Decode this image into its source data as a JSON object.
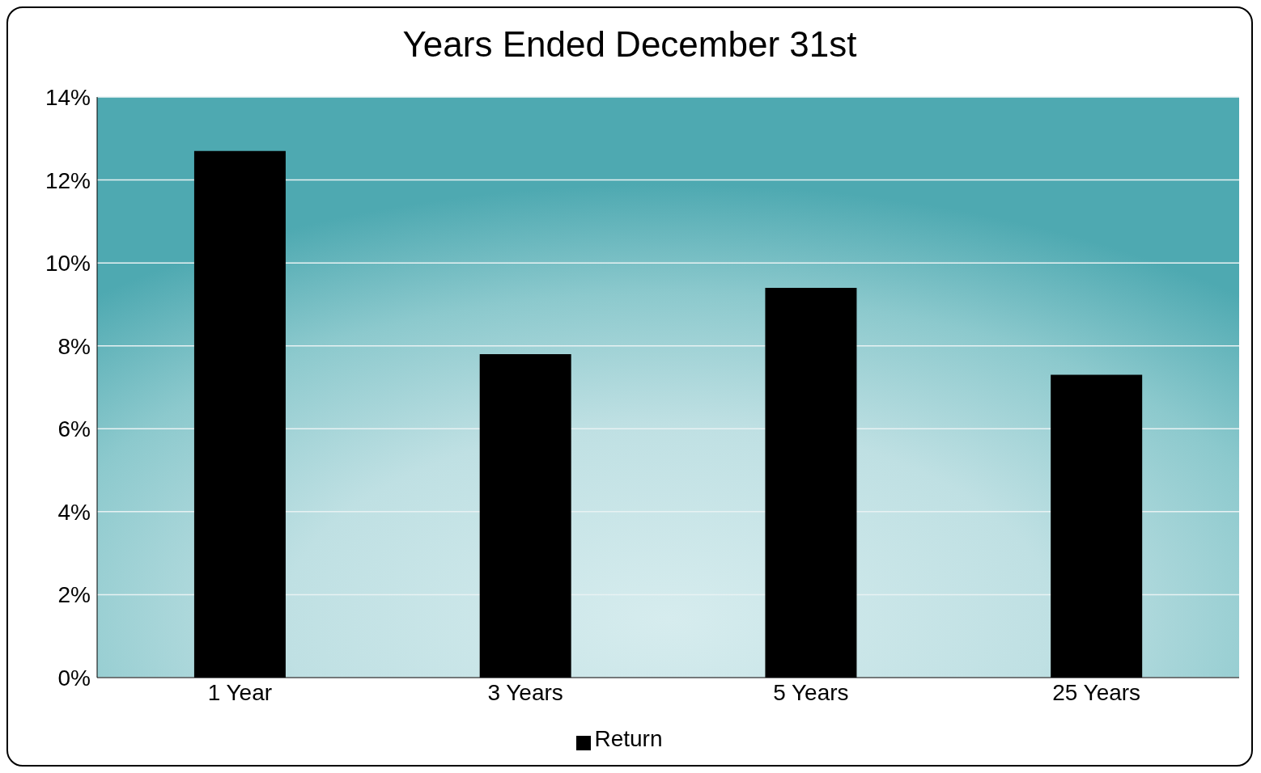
{
  "chart_data": {
    "type": "bar",
    "title": "Years Ended December 31st",
    "categories": [
      "1 Year",
      "3 Years",
      "5 Years",
      "25 Years"
    ],
    "series": [
      {
        "name": "Return",
        "color": "#000000",
        "values": [
          12.7,
          7.8,
          9.4,
          7.3
        ]
      }
    ],
    "ylim": [
      0,
      14
    ],
    "yticks": [
      {
        "value": 0,
        "label": "0%"
      },
      {
        "value": 2,
        "label": "2%"
      },
      {
        "value": 4,
        "label": "4%"
      },
      {
        "value": 6,
        "label": "6%"
      },
      {
        "value": 8,
        "label": "8%"
      },
      {
        "value": 10,
        "label": "10%"
      },
      {
        "value": 12,
        "label": "12%"
      },
      {
        "value": 14,
        "label": "14%"
      }
    ],
    "grid": "y",
    "legend": "bottom"
  }
}
